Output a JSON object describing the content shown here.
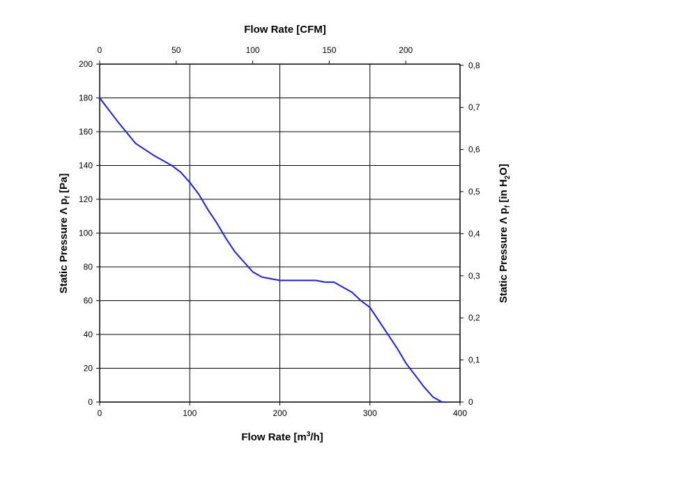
{
  "chart_data": {
    "type": "line",
    "x_axis_bottom": {
      "label_main": "Flow Rate [m",
      "label_sup": "3",
      "label_end": "/h]",
      "range": [
        0,
        400
      ],
      "ticks": [
        0,
        100,
        200,
        300,
        400
      ],
      "tick_labels": [
        "0",
        "100",
        "200",
        "300",
        "400"
      ]
    },
    "x_axis_top": {
      "label": "Flow Rate [CFM]",
      "tick_labels": [
        "0",
        "50",
        "100",
        "150",
        "200"
      ]
    },
    "y_axis_left": {
      "label_main": "Static Pressure Λ p",
      "label_sub": "f",
      "label_end": " [Pa]",
      "range": [
        0,
        200
      ],
      "ticks": [
        0,
        20,
        40,
        60,
        80,
        100,
        120,
        140,
        160,
        180,
        200
      ],
      "tick_labels": [
        "0",
        "20",
        "40",
        "60",
        "80",
        "100",
        "120",
        "140",
        "160",
        "180",
        "200"
      ]
    },
    "y_axis_right": {
      "label_main": "Static Pressure Λ p",
      "label_sub": "f",
      "label_mid": " [in H",
      "label_sub2": "2",
      "label_end": "O]",
      "tick_labels": [
        "0",
        "0,1",
        "0,2",
        "0,3",
        "0,4",
        "0,5",
        "0,6",
        "0,7",
        "0,8"
      ]
    },
    "grid": true,
    "series": [
      {
        "color": "#1a1aff",
        "x": [
          0,
          20,
          40,
          60,
          80,
          90,
          100,
          110,
          120,
          130,
          140,
          150,
          160,
          170,
          180,
          190,
          200,
          210,
          220,
          230,
          240,
          250,
          260,
          270,
          280,
          290,
          300,
          310,
          320,
          330,
          340,
          350,
          360,
          370,
          380,
          385
        ],
        "y": [
          180,
          166,
          153,
          146,
          140,
          136,
          130,
          123,
          114,
          106,
          97,
          89,
          83,
          77,
          74,
          73,
          72,
          72,
          72,
          72,
          72,
          71,
          71,
          68,
          65,
          60,
          56,
          48,
          40,
          32,
          23,
          16,
          9,
          3,
          0,
          0
        ]
      }
    ]
  }
}
